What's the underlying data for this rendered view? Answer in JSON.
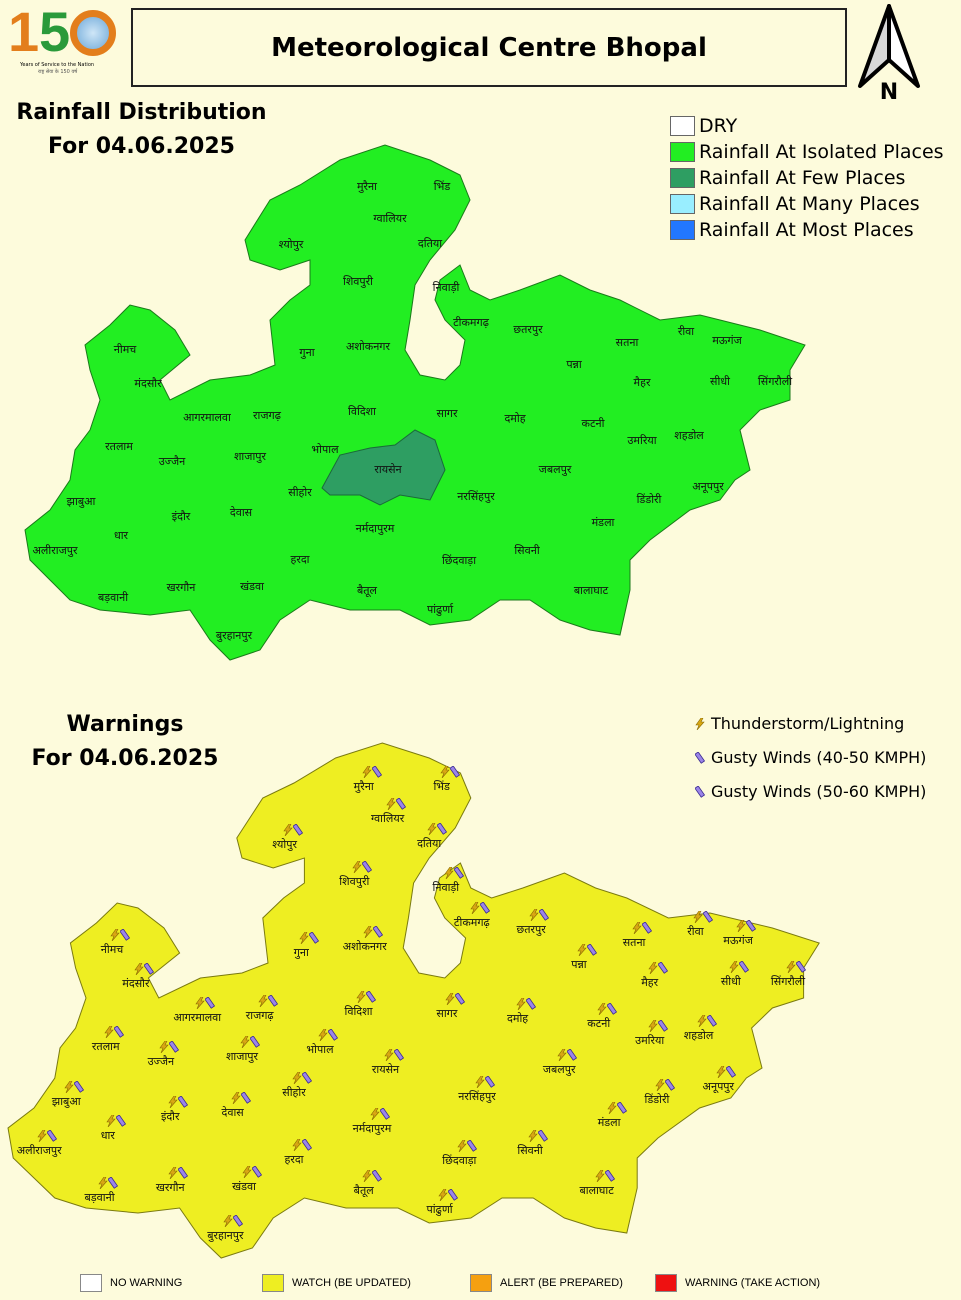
{
  "logo": {
    "number": "150",
    "tagline": "Years of Service to the Nation",
    "tagline_hindi": "राष्ट्र सेवा के 150 वर्ष"
  },
  "header": {
    "title": "Meteorological Centre Bhopal",
    "north_label": "N"
  },
  "rainfall": {
    "title": "Rainfall Distribution",
    "date": "For 04.06.2025",
    "legend": [
      {
        "label": "DRY",
        "color": "#ffffff"
      },
      {
        "label": "Rainfall At Isolated Places",
        "color": "#22ee22"
      },
      {
        "label": "Rainfall At Few Places",
        "color": "#2e9e62"
      },
      {
        "label": "Rainfall At Many Places",
        "color": "#99eeff"
      },
      {
        "label": "Rainfall At Most Places",
        "color": "#2277ff"
      }
    ],
    "default_category": "Rainfall At Isolated Places",
    "raisen_category": "Rainfall At Few Places"
  },
  "warnings": {
    "title": "Warnings",
    "date": "For 04.06.2025",
    "legend": [
      {
        "label": "Thunderstorm/Lightning",
        "icon": "lightning-icon"
      },
      {
        "label": "Gusty Winds (40-50 KMPH)",
        "icon": "wind-icon"
      },
      {
        "label": "Gusty Winds (50-60 KMPH)",
        "icon": "wind-icon"
      }
    ],
    "levels": [
      {
        "label": "NO WARNING",
        "color": "#ffffff"
      },
      {
        "label": "WATCH (BE UPDATED)",
        "color": "#eeee22"
      },
      {
        "label": "ALERT (BE PREPARED)",
        "color": "#f5a010"
      },
      {
        "label": "WARNING (TAKE ACTION)",
        "color": "#ee1111"
      }
    ],
    "default_level": "WATCH (BE UPDATED)"
  },
  "districts": [
    "मुरैना",
    "भिंड",
    "ग्वालियर",
    "दतिया",
    "श्योपुर",
    "शिवपुरी",
    "निवाड़ी",
    "टीकमगढ़",
    "छतरपुर",
    "पन्ना",
    "सतना",
    "रीवा",
    "मऊगंज",
    "सीधी",
    "सिंगरौली",
    "मैहर",
    "नीमच",
    "मंदसौर",
    "गुना",
    "अशोकनगर",
    "विदिशा",
    "सागर",
    "दमोह",
    "कटनी",
    "उमरिया",
    "शहडोल",
    "अनूपपुर",
    "आगरमालवा",
    "राजगढ़",
    "रतलाम",
    "उज्जैन",
    "शाजापुर",
    "भोपाल",
    "रायसेन",
    "जबलपुर",
    "डिंडोरी",
    "झाबुआ",
    "इंदौर",
    "देवास",
    "सीहोर",
    "नरसिंहपुर",
    "मंडला",
    "अलीराजपुर",
    "धार",
    "नर्मदापुरम",
    "छिंदवाड़ा",
    "सिवनी",
    "हरदा",
    "बड़वानी",
    "खरगौन",
    "खंडवा",
    "बैतूल",
    "पांढुर्णा",
    "बालाघाट",
    "बुरहानपुर"
  ]
}
